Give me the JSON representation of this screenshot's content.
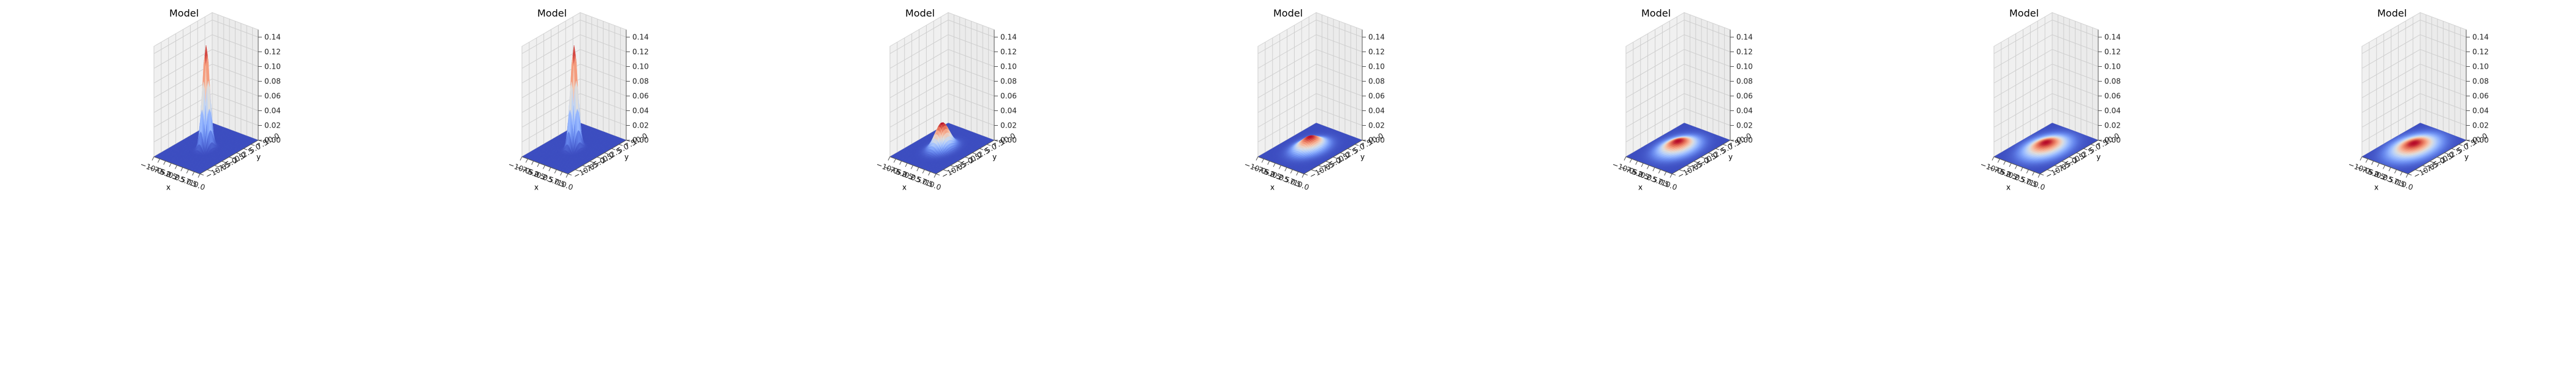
{
  "chart_data": [
    {
      "type": "surface3d",
      "title": "Model",
      "xlabel": "x",
      "ylabel": "y",
      "xlim": [
        -10,
        10
      ],
      "ylim": [
        -10,
        10
      ],
      "zlim": [
        0,
        0.15
      ],
      "xticks": [
        "−10.0",
        "−7.5",
        "−5.0",
        "−2.5",
        "0.0",
        "2.5",
        "5.0",
        "7.5",
        "10.0"
      ],
      "yticks": [
        "−10.0",
        "−7.5",
        "−5.0",
        "−2.5",
        "0.0",
        "2.5",
        "5.0",
        "7.5",
        "10.0"
      ],
      "zticks": [
        "0.00",
        "0.02",
        "0.04",
        "0.06",
        "0.08",
        "0.10",
        "0.12",
        "0.14"
      ],
      "peak_z": 0.14,
      "sigma": 1.0,
      "colormap": "coolwarm",
      "grid": true
    },
    {
      "type": "surface3d",
      "title": "Model",
      "xlabel": "x",
      "ylabel": "y",
      "xlim": [
        -10,
        10
      ],
      "ylim": [
        -10,
        10
      ],
      "zlim": [
        0,
        0.15
      ],
      "xticks": [
        "−10.0",
        "−7.5",
        "−5.0",
        "−2.5",
        "0.0",
        "2.5",
        "5.0",
        "7.5",
        "10.0"
      ],
      "yticks": [
        "−10.0",
        "−7.5",
        "−5.0",
        "−2.5",
        "0.0",
        "2.5",
        "5.0",
        "7.5",
        "10.0"
      ],
      "zticks": [
        "0.00",
        "0.02",
        "0.04",
        "0.06",
        "0.08",
        "0.10",
        "0.12",
        "0.14"
      ],
      "peak_z": 0.14,
      "sigma": 1.0,
      "colormap": "coolwarm",
      "grid": true
    },
    {
      "type": "surface3d",
      "title": "Model",
      "xlabel": "x",
      "ylabel": "y",
      "xlim": [
        -10,
        10
      ],
      "ylim": [
        -10,
        10
      ],
      "zlim": [
        0,
        0.15
      ],
      "xticks": [
        "−10.0",
        "−7.5",
        "−5.0",
        "−2.5",
        "0.0",
        "2.5",
        "5.0",
        "7.5",
        "10.0"
      ],
      "yticks": [
        "−10.0",
        "−7.5",
        "−5.0",
        "−2.5",
        "0.0",
        "2.5",
        "5.0",
        "7.5",
        "10.0"
      ],
      "zticks": [
        "0.00",
        "0.02",
        "0.04",
        "0.06",
        "0.08",
        "0.10",
        "0.12",
        "0.14"
      ],
      "peak_z": 0.035,
      "sigma": 2.0,
      "colormap": "coolwarm",
      "grid": true
    },
    {
      "type": "surface3d",
      "title": "Model",
      "xlabel": "x",
      "ylabel": "y",
      "xlim": [
        -10,
        10
      ],
      "ylim": [
        -10,
        10
      ],
      "zlim": [
        0,
        0.15
      ],
      "xticks": [
        "−10.0",
        "−7.5",
        "−5.0",
        "−2.5",
        "0.0",
        "2.5",
        "5.0",
        "7.5",
        "10.0"
      ],
      "yticks": [
        "−10.0",
        "−7.5",
        "−5.0",
        "−2.5",
        "0.0",
        "2.5",
        "5.0",
        "7.5",
        "10.0"
      ],
      "zticks": [
        "0.00",
        "0.02",
        "0.04",
        "0.06",
        "0.08",
        "0.10",
        "0.12",
        "0.14"
      ],
      "peak_z": 0.016,
      "sigma": 2.8,
      "colormap": "coolwarm",
      "grid": true
    },
    {
      "type": "surface3d",
      "title": "Model",
      "xlabel": "x",
      "ylabel": "y",
      "xlim": [
        -10,
        10
      ],
      "ylim": [
        -10,
        10
      ],
      "zlim": [
        0,
        0.15
      ],
      "xticks": [
        "−10.0",
        "−7.5",
        "−5.0",
        "−2.5",
        "0.0",
        "2.5",
        "5.0",
        "7.5",
        "10.0"
      ],
      "yticks": [
        "−10.0",
        "−7.5",
        "−5.0",
        "−2.5",
        "0.0",
        "2.5",
        "5.0",
        "7.5",
        "10.0"
      ],
      "zticks": [
        "0.00",
        "0.02",
        "0.04",
        "0.06",
        "0.08",
        "0.10",
        "0.12",
        "0.14"
      ],
      "peak_z": 0.01,
      "sigma": 3.4,
      "colormap": "coolwarm",
      "grid": true
    },
    {
      "type": "surface3d",
      "title": "Model",
      "xlabel": "x",
      "ylabel": "y",
      "xlim": [
        -10,
        10
      ],
      "ylim": [
        -10,
        10
      ],
      "zlim": [
        0,
        0.15
      ],
      "xticks": [
        "−10.0",
        "−7.5",
        "−5.0",
        "−2.5",
        "0.0",
        "2.5",
        "5.0",
        "7.5",
        "10.0"
      ],
      "yticks": [
        "−10.0",
        "−7.5",
        "−5.0",
        "−2.5",
        "0.0",
        "2.5",
        "5.0",
        "7.5",
        "10.0"
      ],
      "zticks": [
        "0.00",
        "0.02",
        "0.04",
        "0.06",
        "0.08",
        "0.10",
        "0.12",
        "0.14"
      ],
      "peak_z": 0.008,
      "sigma": 3.8,
      "colormap": "coolwarm",
      "grid": true
    },
    {
      "type": "surface3d",
      "title": "Model",
      "xlabel": "x",
      "ylabel": "y",
      "xlim": [
        -10,
        10
      ],
      "ylim": [
        -10,
        10
      ],
      "zlim": [
        0,
        0.15
      ],
      "xticks": [
        "−10.0",
        "−7.5",
        "−5.0",
        "−2.5",
        "0.0",
        "2.5",
        "5.0",
        "7.5",
        "10.0"
      ],
      "yticks": [
        "−10.0",
        "−7.5",
        "−5.0",
        "−2.5",
        "0.0",
        "2.5",
        "5.0",
        "7.5",
        "10.0"
      ],
      "zticks": [
        "0.00",
        "0.02",
        "0.04",
        "0.06",
        "0.08",
        "0.10",
        "0.12",
        "0.14"
      ],
      "peak_z": 0.007,
      "sigma": 4.1,
      "colormap": "coolwarm",
      "grid": true
    }
  ]
}
